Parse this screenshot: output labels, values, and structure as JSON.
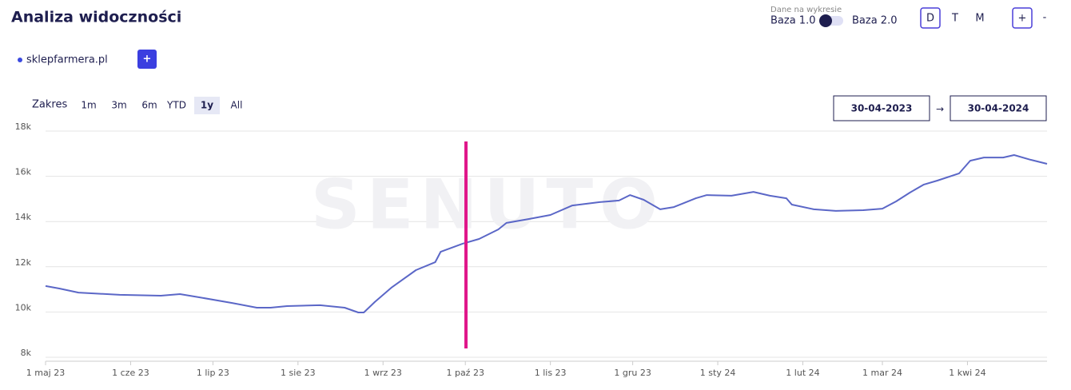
{
  "header": {
    "title": "Analiza widoczności",
    "data_label": "Dane na wykresie",
    "base_left": "Baza 1.0",
    "base_right": "Baza 2.0",
    "intervals": [
      "D",
      "T",
      "M"
    ],
    "zoom_in": "+",
    "zoom_out": "-"
  },
  "domains": {
    "items": [
      "sklepfarmera.pl"
    ],
    "add": "+"
  },
  "range": {
    "label": "Zakres",
    "options": [
      "1m",
      "3m",
      "6m",
      "YTD",
      "1y",
      "All"
    ],
    "selected": "1y",
    "date_from": "30-04-2023",
    "arrow": "→",
    "date_to": "30-04-2024"
  },
  "chart_data": {
    "type": "line",
    "watermark": "SENUTO",
    "x": [
      0,
      5,
      12,
      27,
      42,
      49,
      56,
      68,
      77,
      82,
      88,
      100,
      109,
      114,
      116,
      120,
      126,
      135,
      142,
      144,
      152,
      158,
      165,
      168,
      176,
      184,
      192,
      202,
      209,
      213,
      218,
      224,
      229,
      237,
      241,
      250,
      258,
      264,
      270,
      272,
      280,
      288,
      298,
      305,
      310,
      315,
      320,
      325,
      333,
      337,
      342,
      349,
      353,
      359,
      365
    ],
    "series": [
      {
        "name": "sklepfarmera.pl",
        "color": "#5b67c7",
        "values": [
          11150,
          11040,
          10860,
          10760,
          10720,
          10790,
          10650,
          10400,
          10190,
          10190,
          10260,
          10300,
          10190,
          9980,
          9980,
          10440,
          11070,
          11850,
          12200,
          12660,
          13020,
          13230,
          13650,
          13940,
          14110,
          14290,
          14710,
          14860,
          14930,
          15170,
          14960,
          14540,
          14640,
          15030,
          15170,
          15140,
          15310,
          15140,
          15030,
          14750,
          14540,
          14470,
          14500,
          14570,
          14890,
          15280,
          15630,
          15810,
          16130,
          16690,
          16830,
          16830,
          16940,
          16730,
          16550
        ]
      }
    ],
    "xlim": [
      0,
      365
    ],
    "xticks": [
      {
        "value": 0,
        "label": "1 maj 23"
      },
      {
        "value": 31,
        "label": "1 cze 23"
      },
      {
        "value": 61,
        "label": "1 lip 23"
      },
      {
        "value": 92,
        "label": "1 sie 23"
      },
      {
        "value": 123,
        "label": "1 wrz 23"
      },
      {
        "value": 153,
        "label": "1 paź 23"
      },
      {
        "value": 184,
        "label": "1 lis 23"
      },
      {
        "value": 214,
        "label": "1 gru 23"
      },
      {
        "value": 245,
        "label": "1 sty 24"
      },
      {
        "value": 276,
        "label": "1 lut 24"
      },
      {
        "value": 305,
        "label": "1 mar 24"
      },
      {
        "value": 336,
        "label": "1 kwi 24"
      }
    ],
    "ylim": [
      8000,
      18000
    ],
    "yticks": [
      {
        "value": 8000,
        "label": "8k"
      },
      {
        "value": 10000,
        "label": "10k"
      },
      {
        "value": 12000,
        "label": "12k"
      },
      {
        "value": 14000,
        "label": "14k"
      },
      {
        "value": 16000,
        "label": "16k"
      },
      {
        "value": 18000,
        "label": "18k"
      }
    ],
    "grid": true
  }
}
